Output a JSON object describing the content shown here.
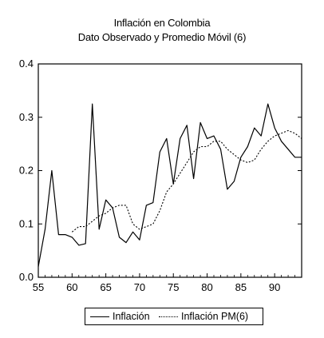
{
  "chart_data": {
    "type": "line",
    "title": "Inflación en Colombia",
    "subtitle": "Dato Observado y Promedio Móvil (6)",
    "xlabel": "",
    "ylabel": "",
    "xlim": [
      55,
      94
    ],
    "ylim": [
      0.0,
      0.4
    ],
    "x_ticks": [
      55,
      60,
      65,
      70,
      75,
      80,
      85,
      90
    ],
    "x_tick_labels": [
      "55",
      "60",
      "65",
      "70",
      "75",
      "80",
      "85",
      "90"
    ],
    "y_ticks": [
      0.0,
      0.1,
      0.2,
      0.3,
      0.4
    ],
    "y_tick_labels": [
      "0.0",
      "0.1",
      "0.2",
      "0.3",
      "0.4"
    ],
    "grid": false,
    "legend_position": "bottom",
    "series": [
      {
        "name": "Inflación",
        "style": "solid",
        "color": "#000000",
        "x": [
          55,
          56,
          57,
          58,
          59,
          60,
          61,
          62,
          63,
          64,
          65,
          66,
          67,
          68,
          69,
          70,
          71,
          72,
          73,
          74,
          75,
          76,
          77,
          78,
          79,
          80,
          81,
          82,
          83,
          84,
          85,
          86,
          87,
          88,
          89,
          90,
          91,
          92,
          93,
          94
        ],
        "y": [
          0.02,
          0.09,
          0.2,
          0.08,
          0.08,
          0.075,
          0.06,
          0.063,
          0.325,
          0.09,
          0.145,
          0.13,
          0.075,
          0.065,
          0.085,
          0.07,
          0.135,
          0.14,
          0.235,
          0.26,
          0.175,
          0.26,
          0.285,
          0.185,
          0.29,
          0.26,
          0.265,
          0.24,
          0.165,
          0.18,
          0.225,
          0.245,
          0.28,
          0.265,
          0.325,
          0.28,
          0.255,
          0.24,
          0.225,
          0.225
        ]
      },
      {
        "name": "Inflación PM(6)",
        "style": "dotted",
        "color": "#000000",
        "x": [
          60,
          61,
          62,
          63,
          64,
          65,
          66,
          67,
          68,
          69,
          70,
          71,
          72,
          73,
          74,
          75,
          76,
          77,
          78,
          79,
          80,
          81,
          82,
          83,
          84,
          85,
          86,
          87,
          88,
          89,
          90,
          91,
          92,
          93,
          94
        ],
        "y": [
          0.085,
          0.095,
          0.095,
          0.105,
          0.115,
          0.12,
          0.13,
          0.135,
          0.135,
          0.1,
          0.09,
          0.095,
          0.1,
          0.125,
          0.16,
          0.175,
          0.195,
          0.215,
          0.235,
          0.245,
          0.245,
          0.255,
          0.255,
          0.24,
          0.23,
          0.22,
          0.215,
          0.22,
          0.24,
          0.255,
          0.265,
          0.27,
          0.275,
          0.27,
          0.26
        ]
      }
    ],
    "legend": [
      {
        "label": "Inflación",
        "style": "solid"
      },
      {
        "label": "Inflación PM(6)",
        "style": "dotted"
      }
    ]
  }
}
